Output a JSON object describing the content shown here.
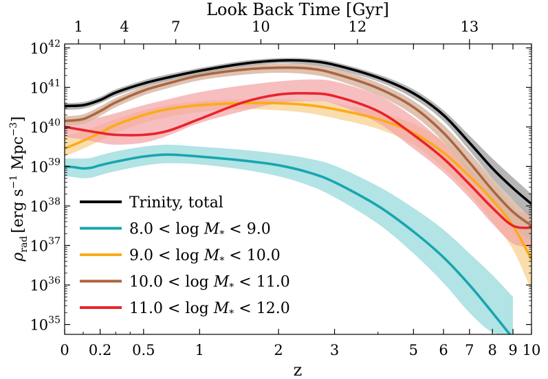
{
  "chart_data": {
    "type": "line",
    "title": "",
    "xlabel": "z",
    "ylabel": "ρ_rad [erg s⁻¹ Mpc⁻³]",
    "ylabel_main": "ρ",
    "ylabel_sub": "rad",
    "ylabel_units": "[erg s",
    "ylabel_units_exp1": "−1",
    "ylabel_units_mid": " Mpc",
    "ylabel_units_exp2": "−3",
    "ylabel_units_end": "]",
    "top_axis_label": "Look Back Time [Gyr]",
    "x_scale": "log(1+z)",
    "y_scale": "log",
    "xlim": [
      0,
      10
    ],
    "ylim_log10": [
      34.75,
      42.1
    ],
    "x_ticks": [
      {
        "value": 0,
        "label": "0"
      },
      {
        "value": 0.2,
        "label": "0.2"
      },
      {
        "value": 0.5,
        "label": "0.5"
      },
      {
        "value": 1,
        "label": "1"
      },
      {
        "value": 2,
        "label": "2"
      },
      {
        "value": 3,
        "label": "3"
      },
      {
        "value": 5,
        "label": "5"
      },
      {
        "value": 6,
        "label": "6"
      },
      {
        "value": 7,
        "label": "7"
      },
      {
        "value": 8,
        "label": "8"
      },
      {
        "value": 9,
        "label": "9"
      },
      {
        "value": 10,
        "label": "10"
      }
    ],
    "x_minor_ticks": [
      0.1,
      0.3,
      0.4,
      4
    ],
    "top_ticks": [
      {
        "label": "1",
        "z": 0.074
      },
      {
        "label": "4",
        "z": 0.36
      },
      {
        "label": "7",
        "z": 0.77
      },
      {
        "label": "10",
        "z": 1.74
      },
      {
        "label": "12",
        "z": 3.5
      },
      {
        "label": "13",
        "z": 7.0
      }
    ],
    "y_ticks": [
      {
        "exp": 35,
        "base": "10",
        "power": "35"
      },
      {
        "exp": 36,
        "base": "10",
        "power": "36"
      },
      {
        "exp": 37,
        "base": "10",
        "power": "37"
      },
      {
        "exp": 38,
        "base": "10",
        "power": "38"
      },
      {
        "exp": 39,
        "base": "10",
        "power": "39"
      },
      {
        "exp": 40,
        "base": "10",
        "power": "40"
      },
      {
        "exp": 41,
        "base": "10",
        "power": "41"
      },
      {
        "exp": 42,
        "base": "10",
        "power": "42"
      }
    ],
    "legend_position": "lower-left",
    "series": [
      {
        "name": "Trinity, total",
        "legend_parts": [
          "Trinity, total"
        ],
        "color": "#000000",
        "band_color": "#a9a9a9",
        "band_opacity": 0.85,
        "z": [
          0,
          0.1,
          0.2,
          0.3,
          0.5,
          0.7,
          1.0,
          1.5,
          2.0,
          2.5,
          3.0,
          4.0,
          5.0,
          6.0,
          7.0,
          8.0,
          9.0,
          10.0
        ],
        "mid": [
          40.53,
          40.55,
          40.68,
          40.87,
          41.1,
          41.25,
          41.42,
          41.6,
          41.68,
          41.67,
          41.57,
          41.25,
          40.85,
          40.3,
          39.6,
          38.95,
          38.45,
          38.05
        ],
        "lo": [
          40.43,
          40.46,
          40.6,
          40.78,
          41.02,
          41.17,
          41.34,
          41.52,
          41.61,
          41.58,
          41.47,
          41.15,
          40.72,
          40.15,
          39.4,
          38.7,
          38.15,
          37.7
        ],
        "hi": [
          40.6,
          40.63,
          40.76,
          40.95,
          41.18,
          41.33,
          41.49,
          41.67,
          41.74,
          41.73,
          41.64,
          41.33,
          40.95,
          40.42,
          39.78,
          39.2,
          38.72,
          38.3
        ]
      },
      {
        "name": "8.0 < log M* < 9.0",
        "legend_parts": [
          "8.0",
          " < log ",
          "M",
          "*",
          " < 9.0"
        ],
        "color": "#17a6ae",
        "band_color": "#b2e3e5",
        "band_opacity": 1,
        "z": [
          0,
          0.05,
          0.1,
          0.15,
          0.2,
          0.3,
          0.5,
          0.7,
          1.0,
          1.5,
          2.0,
          2.5,
          3.0,
          4.0,
          5.0,
          6.0,
          7.0,
          8.0,
          9.0
        ],
        "mid": [
          39.0,
          38.98,
          38.95,
          38.97,
          39.03,
          39.12,
          39.25,
          39.3,
          39.25,
          39.15,
          39.03,
          38.85,
          38.6,
          38.0,
          37.35,
          36.7,
          36.0,
          35.3,
          34.65
        ],
        "lo": [
          38.75,
          38.73,
          38.7,
          38.72,
          38.78,
          38.88,
          39.02,
          39.08,
          39.05,
          38.92,
          38.75,
          38.52,
          38.22,
          37.55,
          36.8,
          36.05,
          35.3,
          34.8,
          34.75
        ],
        "hi": [
          39.2,
          39.2,
          39.2,
          39.22,
          39.28,
          39.38,
          39.5,
          39.55,
          39.5,
          39.42,
          39.32,
          39.2,
          39.02,
          38.5,
          37.95,
          37.4,
          36.8,
          36.25,
          35.7
        ]
      },
      {
        "name": "9.0 < log M* < 10.0",
        "legend_parts": [
          "9.0",
          " < log ",
          "M",
          "*",
          " < 10.0"
        ],
        "color": "#fbab18",
        "band_color": "#f8d79e",
        "band_opacity": 0.85,
        "z": [
          0,
          0.1,
          0.2,
          0.3,
          0.5,
          0.7,
          1.0,
          1.5,
          2.0,
          2.5,
          3.0,
          4.0,
          5.0,
          6.0,
          7.0,
          8.0,
          9.0,
          10.0
        ],
        "mid": [
          39.45,
          39.65,
          39.85,
          40.05,
          40.3,
          40.45,
          40.55,
          40.6,
          40.6,
          40.55,
          40.45,
          40.2,
          39.85,
          39.35,
          38.75,
          38.15,
          37.5,
          36.65
        ],
        "lo": [
          39.25,
          39.45,
          39.65,
          39.85,
          40.1,
          40.25,
          40.38,
          40.45,
          40.42,
          40.35,
          40.22,
          39.95,
          39.55,
          38.95,
          38.3,
          37.6,
          36.9,
          35.85
        ],
        "hi": [
          39.75,
          39.9,
          40.05,
          40.2,
          40.42,
          40.55,
          40.65,
          40.7,
          40.7,
          40.67,
          40.6,
          40.38,
          40.08,
          39.65,
          39.15,
          38.6,
          38.0,
          37.3
        ]
      },
      {
        "name": "10.0 < log M* < 11.0",
        "legend_parts": [
          "10.0",
          " < log ",
          "M",
          "*",
          " < 11.0"
        ],
        "color": "#a96640",
        "band_color": "#d9b7a4",
        "band_opacity": 0.85,
        "z": [
          0,
          0.1,
          0.2,
          0.3,
          0.5,
          0.7,
          1.0,
          1.5,
          2.0,
          2.5,
          3.0,
          4.0,
          5.0,
          6.0,
          7.0,
          8.0,
          9.0,
          10.0
        ],
        "mid": [
          40.15,
          40.2,
          40.4,
          40.62,
          40.92,
          41.1,
          41.3,
          41.45,
          41.5,
          41.48,
          41.35,
          40.98,
          40.5,
          39.85,
          39.1,
          38.4,
          37.85,
          37.5
        ],
        "lo": [
          40.03,
          40.08,
          40.28,
          40.5,
          40.8,
          40.98,
          41.18,
          41.32,
          41.37,
          41.33,
          41.2,
          40.8,
          40.3,
          39.62,
          38.82,
          38.1,
          37.5,
          37.1
        ],
        "hi": [
          40.27,
          40.32,
          40.52,
          40.73,
          41.02,
          41.2,
          41.4,
          41.55,
          41.6,
          41.6,
          41.48,
          41.12,
          40.66,
          40.05,
          39.35,
          38.7,
          38.15,
          37.8
        ]
      },
      {
        "name": "11.0 < log M* < 12.0",
        "legend_parts": [
          "11.0",
          " < log ",
          "M",
          "*",
          " < 12.0"
        ],
        "color": "#e8242c",
        "band_color": "#f3a2a5",
        "band_opacity": 0.7,
        "z": [
          0,
          0.1,
          0.2,
          0.3,
          0.5,
          0.7,
          1.0,
          1.5,
          2.0,
          2.5,
          3.0,
          4.0,
          5.0,
          6.0,
          7.0,
          8.0,
          9.0,
          10.0
        ],
        "mid": [
          40.0,
          39.92,
          39.85,
          39.8,
          39.8,
          39.9,
          40.2,
          40.62,
          40.82,
          40.85,
          40.78,
          40.4,
          39.8,
          39.2,
          38.55,
          37.95,
          37.5,
          37.45
        ],
        "lo": [
          39.75,
          39.68,
          39.6,
          39.55,
          39.6,
          39.78,
          40.1,
          40.4,
          40.6,
          40.65,
          40.58,
          40.1,
          39.45,
          38.85,
          38.2,
          37.55,
          37.05,
          36.95
        ],
        "hi": [
          40.2,
          40.2,
          40.25,
          40.35,
          40.55,
          40.7,
          40.88,
          41.05,
          41.15,
          41.2,
          41.15,
          40.8,
          40.25,
          39.6,
          38.95,
          38.35,
          37.9,
          37.85
        ]
      }
    ]
  }
}
